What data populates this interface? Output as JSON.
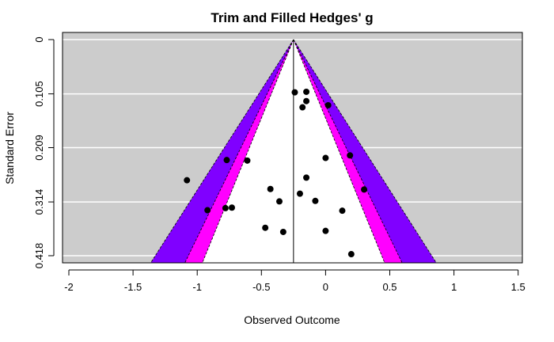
{
  "chart_data": {
    "type": "scatter",
    "title": "Trim and Filled Hedges' g",
    "xlabel": "Observed Outcome",
    "ylabel": "Standard Error",
    "xlim": [
      -2.03,
      1.5
    ],
    "ylim": [
      0,
      0.418
    ],
    "x_ticks": [
      "-2",
      "-1.5",
      "-1",
      "-0.5",
      "0",
      "0.5",
      "1",
      "1.5"
    ],
    "y_ticks": [
      "0",
      "0.105",
      "0.209",
      "0.314",
      "0.418"
    ],
    "y_reversed": true,
    "center_estimate": -0.25,
    "contour_z": [
      1.645,
      1.96,
      2.576
    ],
    "colors": {
      "background": "#cccccc",
      "region_inner": "#ffffff",
      "region_mid": "#ff00ff",
      "region_outer": "#8000ff",
      "points": "#000000",
      "grid": "#ffffff"
    },
    "points": [
      {
        "x": -0.24,
        "y": 0.102
      },
      {
        "x": -0.15,
        "y": 0.101
      },
      {
        "x": -0.15,
        "y": 0.119
      },
      {
        "x": -0.18,
        "y": 0.131
      },
      {
        "x": 0.02,
        "y": 0.127
      },
      {
        "x": 0.19,
        "y": 0.224
      },
      {
        "x": -0.77,
        "y": 0.233
      },
      {
        "x": -0.61,
        "y": 0.234
      },
      {
        "x": 0.0,
        "y": 0.229
      },
      {
        "x": -1.08,
        "y": 0.272
      },
      {
        "x": -0.15,
        "y": 0.267
      },
      {
        "x": -0.43,
        "y": 0.289
      },
      {
        "x": 0.3,
        "y": 0.29
      },
      {
        "x": -0.2,
        "y": 0.298
      },
      {
        "x": -0.36,
        "y": 0.313
      },
      {
        "x": -0.08,
        "y": 0.312
      },
      {
        "x": -0.92,
        "y": 0.33
      },
      {
        "x": -0.78,
        "y": 0.326
      },
      {
        "x": -0.73,
        "y": 0.325
      },
      {
        "x": 0.13,
        "y": 0.331
      },
      {
        "x": -0.47,
        "y": 0.364
      },
      {
        "x": -0.33,
        "y": 0.372
      },
      {
        "x": 0.0,
        "y": 0.37
      },
      {
        "x": 0.2,
        "y": 0.415
      }
    ]
  }
}
